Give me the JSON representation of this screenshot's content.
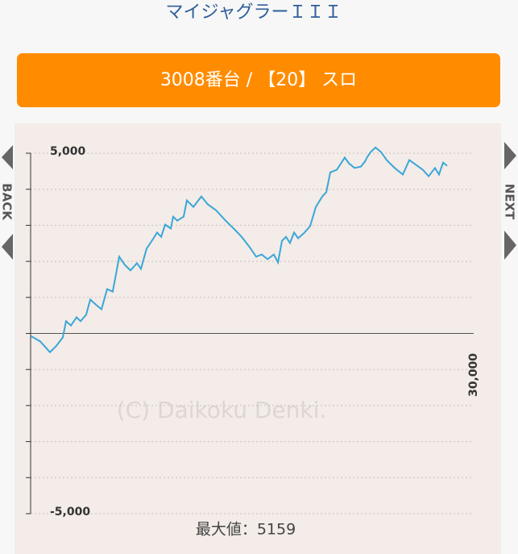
{
  "header": {
    "title": "マイジャグラーＩＩＩ",
    "button": "3008番台 / 【20】 スロ"
  },
  "nav": {
    "back": "BACK",
    "next": "NEXT"
  },
  "watermark": "(C) Daikoku Denki.",
  "footer": "最大値：5159",
  "chart_data": {
    "type": "line",
    "color": "#3aa6d8",
    "xlim": [
      0,
      30000
    ],
    "xticks": [
      {
        "value": 30000,
        "label": "30,000"
      }
    ],
    "ylim": [
      -5000,
      5000
    ],
    "yticks": [
      {
        "value": -5000,
        "label": "-5,000"
      },
      {
        "value": -4000,
        "label": null
      },
      {
        "value": -3000,
        "label": null
      },
      {
        "value": -2000,
        "label": null
      },
      {
        "value": -1000,
        "label": null
      },
      {
        "value": 0,
        "label": null
      },
      {
        "value": 1000,
        "label": null
      },
      {
        "value": 2000,
        "label": null
      },
      {
        "value": 3000,
        "label": null
      },
      {
        "value": 4000,
        "label": null
      },
      {
        "value": 5000,
        "label": "5,000"
      }
    ],
    "grid": true,
    "x": [
      0,
      650,
      1310,
      1750,
      2180,
      2400,
      2730,
      3110,
      3380,
      3760,
      4040,
      4470,
      4800,
      5180,
      5560,
      6000,
      6380,
      6760,
      7200,
      7470,
      7850,
      8290,
      8560,
      8840,
      9110,
      9490,
      9650,
      9930,
      10360,
      10580,
      11020,
      11560,
      12000,
      12550,
      13200,
      13750,
      14290,
      14840,
      15270,
      15650,
      16040,
      16470,
      16750,
      17020,
      17290,
      17560,
      17840,
      18110,
      18550,
      18930,
      19310,
      19750,
      20020,
      20290,
      20730,
      21270,
      21550,
      21930,
      22360,
      22640,
      22800,
      23020,
      23350,
      23730,
      24110,
      24650,
      25200,
      25640,
      26020,
      26560,
      26950,
      27380,
      27650,
      27930,
      28200
    ],
    "values": [
      -70,
      -220,
      -520,
      -340,
      -110,
      340,
      220,
      450,
      340,
      520,
      940,
      780,
      670,
      1230,
      1160,
      2130,
      1900,
      1750,
      1950,
      1790,
      2350,
      2620,
      2800,
      2680,
      3020,
      2910,
      3240,
      3130,
      3240,
      3690,
      3510,
      3800,
      3580,
      3420,
      3130,
      2910,
      2680,
      2390,
      2130,
      2190,
      2060,
      2190,
      1970,
      2570,
      2680,
      2510,
      2800,
      2640,
      2800,
      2980,
      3510,
      3800,
      3920,
      4470,
      4540,
      4880,
      4720,
      4590,
      4630,
      4770,
      4900,
      5030,
      5159,
      5030,
      4810,
      4590,
      4410,
      4810,
      4700,
      4540,
      4360,
      4590,
      4410,
      4740,
      4650
    ]
  }
}
